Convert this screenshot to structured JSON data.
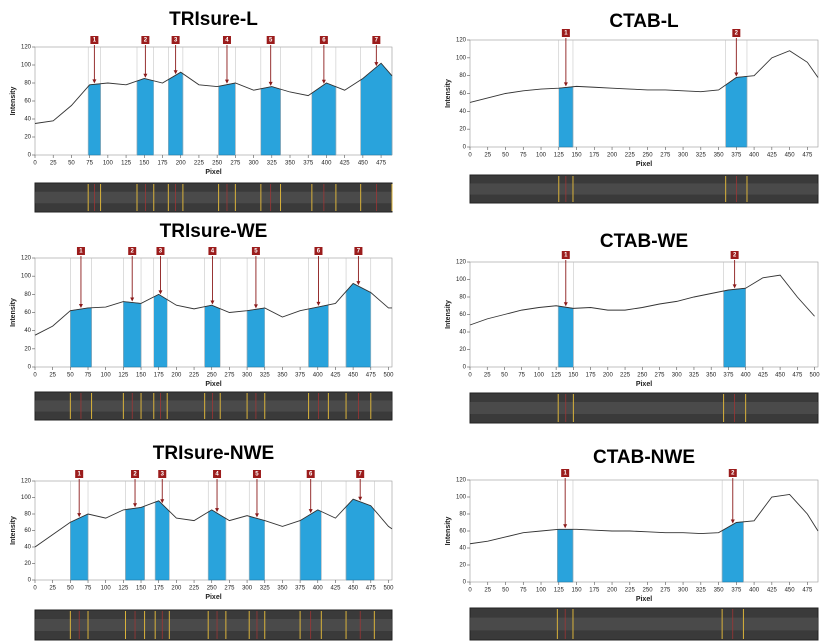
{
  "chart_data": [
    {
      "type": "line",
      "title": "TRIsure-L",
      "xlabel": "Pixel",
      "ylabel": "Intensity",
      "color": "#333333",
      "band_color": "#29a3dc",
      "x": [
        0,
        25,
        50,
        75,
        100,
        125,
        150,
        175,
        200,
        225,
        250,
        275,
        300,
        325,
        350,
        375,
        400,
        425,
        450,
        475,
        490
      ],
      "values": [
        35,
        38,
        55,
        78,
        80,
        78,
        85,
        80,
        92,
        78,
        76,
        80,
        72,
        76,
        70,
        66,
        80,
        72,
        85,
        102,
        88
      ],
      "bands": [
        {
          "label": "1",
          "start": 73,
          "end": 90
        },
        {
          "label": "2",
          "start": 140,
          "end": 163
        },
        {
          "label": "3",
          "start": 183,
          "end": 203
        },
        {
          "label": "4",
          "start": 252,
          "end": 275
        },
        {
          "label": "5",
          "start": 310,
          "end": 337
        },
        {
          "label": "6",
          "start": 380,
          "end": 413
        },
        {
          "label": "7",
          "start": 447,
          "end": 490
        }
      ],
      "xlim": [
        0,
        490
      ],
      "ylim": [
        0,
        120
      ],
      "xticks": [
        0,
        25,
        50,
        75,
        100,
        125,
        150,
        175,
        200,
        225,
        250,
        275,
        300,
        325,
        350,
        375,
        400,
        425,
        450,
        475
      ],
      "yticks": [
        0,
        20,
        40,
        60,
        80,
        100,
        120
      ]
    },
    {
      "type": "line",
      "title": "CTAB-L",
      "xlabel": "Pixel",
      "ylabel": "Intensity",
      "color": "#333333",
      "band_color": "#29a3dc",
      "x": [
        0,
        25,
        50,
        75,
        100,
        125,
        150,
        175,
        200,
        225,
        250,
        275,
        300,
        325,
        350,
        375,
        400,
        425,
        450,
        475,
        490
      ],
      "values": [
        50,
        55,
        60,
        63,
        65,
        66,
        68,
        67,
        66,
        65,
        64,
        64,
        63,
        62,
        64,
        78,
        80,
        100,
        108,
        95,
        78
      ],
      "bands": [
        {
          "label": "1",
          "start": 125,
          "end": 145
        },
        {
          "label": "2",
          "start": 360,
          "end": 390
        }
      ],
      "xlim": [
        0,
        490
      ],
      "ylim": [
        0,
        120
      ],
      "xticks": [
        0,
        25,
        50,
        75,
        100,
        125,
        150,
        175,
        200,
        225,
        250,
        275,
        300,
        325,
        350,
        375,
        400,
        425,
        450,
        475
      ],
      "yticks": [
        0,
        20,
        40,
        60,
        80,
        100,
        120
      ]
    },
    {
      "type": "line",
      "title": "TRIsure-WE",
      "xlabel": "Pixel",
      "ylabel": "Intensity",
      "color": "#333333",
      "band_color": "#29a3dc",
      "x": [
        0,
        25,
        50,
        75,
        100,
        125,
        150,
        175,
        200,
        225,
        250,
        275,
        300,
        325,
        350,
        375,
        400,
        425,
        450,
        475,
        500,
        505
      ],
      "values": [
        35,
        45,
        62,
        65,
        66,
        72,
        70,
        80,
        68,
        64,
        68,
        60,
        62,
        65,
        55,
        62,
        66,
        70,
        92,
        82,
        65,
        65
      ],
      "bands": [
        {
          "label": "1",
          "start": 50,
          "end": 80
        },
        {
          "label": "2",
          "start": 125,
          "end": 150
        },
        {
          "label": "3",
          "start": 168,
          "end": 187
        },
        {
          "label": "4",
          "start": 240,
          "end": 262
        },
        {
          "label": "5",
          "start": 300,
          "end": 325
        },
        {
          "label": "6",
          "start": 387,
          "end": 415
        },
        {
          "label": "7",
          "start": 440,
          "end": 475
        }
      ],
      "xlim": [
        0,
        505
      ],
      "ylim": [
        0,
        120
      ],
      "xticks": [
        0,
        25,
        50,
        75,
        100,
        125,
        150,
        175,
        200,
        225,
        250,
        275,
        300,
        325,
        350,
        375,
        400,
        425,
        450,
        475,
        500
      ],
      "yticks": [
        0,
        20,
        40,
        60,
        80,
        100,
        120
      ]
    },
    {
      "type": "line",
      "title": "CTAB-WE",
      "xlabel": "Pixel",
      "ylabel": "Intensity",
      "color": "#333333",
      "band_color": "#29a3dc",
      "x": [
        0,
        25,
        50,
        75,
        100,
        125,
        150,
        175,
        200,
        225,
        250,
        275,
        300,
        325,
        350,
        375,
        400,
        425,
        450,
        475,
        500
      ],
      "values": [
        48,
        55,
        60,
        65,
        68,
        70,
        67,
        68,
        65,
        65,
        68,
        72,
        75,
        80,
        84,
        88,
        90,
        102,
        105,
        80,
        58
      ],
      "bands": [
        {
          "label": "1",
          "start": 128,
          "end": 150
        },
        {
          "label": "2",
          "start": 368,
          "end": 400
        }
      ],
      "xlim": [
        0,
        505
      ],
      "ylim": [
        0,
        120
      ],
      "xticks": [
        0,
        25,
        50,
        75,
        100,
        125,
        150,
        175,
        200,
        225,
        250,
        275,
        300,
        325,
        350,
        375,
        400,
        425,
        450,
        475,
        500
      ],
      "yticks": [
        0,
        20,
        40,
        60,
        80,
        100,
        120
      ]
    },
    {
      "type": "line",
      "title": "TRIsure-NWE",
      "xlabel": "Pixel",
      "ylabel": "Intensity",
      "color": "#333333",
      "band_color": "#29a3dc",
      "x": [
        0,
        25,
        50,
        75,
        100,
        125,
        150,
        175,
        200,
        225,
        250,
        275,
        300,
        325,
        350,
        375,
        400,
        425,
        450,
        475,
        500,
        505
      ],
      "values": [
        40,
        55,
        70,
        80,
        75,
        85,
        88,
        96,
        75,
        72,
        85,
        72,
        78,
        72,
        65,
        72,
        85,
        75,
        98,
        90,
        65,
        62
      ],
      "bands": [
        {
          "label": "1",
          "start": 50,
          "end": 75
        },
        {
          "label": "2",
          "start": 128,
          "end": 155
        },
        {
          "label": "3",
          "start": 170,
          "end": 190
        },
        {
          "label": "4",
          "start": 245,
          "end": 270
        },
        {
          "label": "5",
          "start": 303,
          "end": 325
        },
        {
          "label": "6",
          "start": 375,
          "end": 405
        },
        {
          "label": "7",
          "start": 440,
          "end": 480
        }
      ],
      "xlim": [
        0,
        505
      ],
      "ylim": [
        0,
        120
      ],
      "xticks": [
        0,
        25,
        50,
        75,
        100,
        125,
        150,
        175,
        200,
        225,
        250,
        275,
        300,
        325,
        350,
        375,
        400,
        425,
        450,
        475,
        500
      ],
      "yticks": [
        0,
        20,
        40,
        60,
        80,
        100,
        120
      ]
    },
    {
      "type": "line",
      "title": "CTAB-NWE",
      "xlabel": "Pixel",
      "ylabel": "Intensity",
      "color": "#333333",
      "band_color": "#29a3dc",
      "x": [
        0,
        25,
        50,
        75,
        100,
        125,
        150,
        175,
        200,
        225,
        250,
        275,
        300,
        325,
        350,
        375,
        400,
        425,
        450,
        475,
        490
      ],
      "values": [
        45,
        48,
        53,
        58,
        60,
        62,
        62,
        61,
        60,
        60,
        59,
        58,
        58,
        57,
        58,
        70,
        72,
        100,
        103,
        80,
        60
      ],
      "bands": [
        {
          "label": "1",
          "start": 123,
          "end": 145
        },
        {
          "label": "2",
          "start": 355,
          "end": 385
        }
      ],
      "xlim": [
        0,
        490
      ],
      "ylim": [
        0,
        120
      ],
      "xticks": [
        0,
        25,
        50,
        75,
        100,
        125,
        150,
        175,
        200,
        225,
        250,
        275,
        300,
        325,
        350,
        375,
        400,
        425,
        450,
        475
      ],
      "yticks": [
        0,
        20,
        40,
        60,
        80,
        100,
        120
      ]
    }
  ]
}
